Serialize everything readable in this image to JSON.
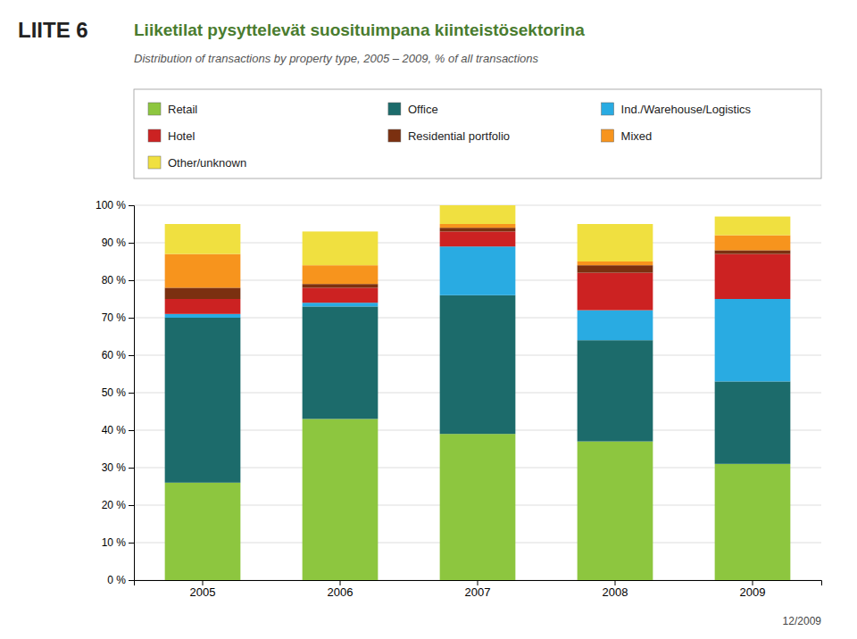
{
  "chart_data": {
    "type": "bar",
    "title": "Liiketilat pysyttelevät suosituimpana kiinteistösektorina",
    "subtitle": "Distribution of transactions by property type, 2005 – 2009, % of all transactions",
    "annotations": [
      "LIITE 6",
      "12/2009"
    ],
    "categories": [
      "2005",
      "2006",
      "2007",
      "2008",
      "2009"
    ],
    "series": [
      {
        "name": "Retail",
        "color": "#8DC63F",
        "values": [
          26,
          43,
          39,
          37,
          31
        ]
      },
      {
        "name": "Office",
        "color": "#1C6B6B",
        "values": [
          44,
          30,
          37,
          27,
          22
        ]
      },
      {
        "name": "Ind./Warehouse/Logistics",
        "color": "#29ABE2",
        "values": [
          1,
          1,
          13,
          8,
          22
        ]
      },
      {
        "name": "Hotel",
        "color": "#CC2222",
        "values": [
          4,
          4,
          4,
          10,
          12
        ]
      },
      {
        "name": "Residential portfolio",
        "color": "#7B3010",
        "values": [
          3,
          1,
          1,
          2,
          1
        ]
      },
      {
        "name": "Mixed",
        "color": "#F7941D",
        "values": [
          9,
          5,
          1,
          1,
          4
        ]
      },
      {
        "name": "Other/unknown",
        "color": "#F0E040",
        "values": [
          8,
          9,
          5,
          10,
          5
        ]
      }
    ],
    "stacked": true,
    "ylim": [
      0,
      100
    ],
    "yticks": [
      {
        "value": 0,
        "label": "0 %"
      },
      {
        "value": 10,
        "label": "10 %"
      },
      {
        "value": 20,
        "label": "20 %"
      },
      {
        "value": 30,
        "label": "30 %"
      },
      {
        "value": 40,
        "label": "40 %"
      },
      {
        "value": 50,
        "label": "50 %"
      },
      {
        "value": 60,
        "label": "60 %"
      },
      {
        "value": 70,
        "label": "70 %"
      },
      {
        "value": 80,
        "label": "80 %"
      },
      {
        "value": 90,
        "label": "90 %"
      },
      {
        "value": 100,
        "label": "100 %"
      }
    ],
    "grid": true,
    "legend": "top"
  }
}
